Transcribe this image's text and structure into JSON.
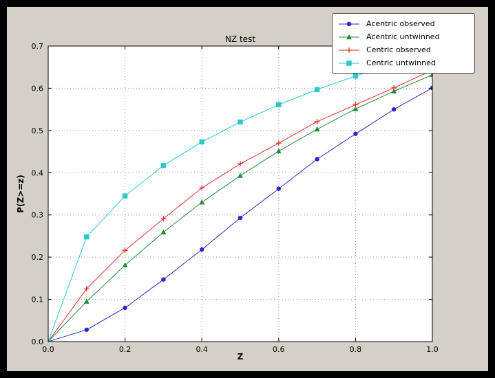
{
  "figure": {
    "background": "#000000",
    "canvas": "#d4d0c8",
    "plot_background": "#ffffff",
    "grid_color": "#9a9a9a",
    "axis_color": "#000000"
  },
  "chart_data": {
    "type": "line",
    "title": "NZ test",
    "xlabel": "Z",
    "ylabel": "P(Z>=z)",
    "xlim": [
      0.0,
      1.0
    ],
    "ylim": [
      0.0,
      0.7
    ],
    "xticks": [
      0.0,
      0.2,
      0.4,
      0.6,
      0.8,
      1.0
    ],
    "yticks": [
      0.0,
      0.1,
      0.2,
      0.3,
      0.4,
      0.5,
      0.6,
      0.7
    ],
    "grid": true,
    "legend_position": "upper right",
    "x": [
      0.0,
      0.1,
      0.2,
      0.3,
      0.4,
      0.5,
      0.6,
      0.7,
      0.8,
      0.9,
      1.0
    ],
    "series": [
      {
        "name": "Acentric observed",
        "color": "#2727cc",
        "marker": "circle",
        "values": [
          0.0,
          0.028,
          0.08,
          0.147,
          0.218,
          0.293,
          0.362,
          0.432,
          0.492,
          0.55,
          0.601
        ]
      },
      {
        "name": "Acentric untwinned",
        "color": "#228b3a",
        "marker": "triangle",
        "values": [
          0.0,
          0.095,
          0.181,
          0.259,
          0.33,
          0.393,
          0.451,
          0.503,
          0.551,
          0.593,
          0.632
        ]
      },
      {
        "name": "Centric observed",
        "color": "#e62e2e",
        "marker": "plus",
        "values": [
          0.0,
          0.125,
          0.216,
          0.291,
          0.364,
          0.421,
          0.47,
          0.521,
          0.561,
          0.601,
          0.643
        ]
      },
      {
        "name": "Centric untwinned",
        "color": "#2cc8c8",
        "marker": "square",
        "values": [
          0.0,
          0.248,
          0.345,
          0.417,
          0.473,
          0.52,
          0.561,
          0.597,
          0.629,
          0.657,
          0.683
        ]
      }
    ]
  }
}
